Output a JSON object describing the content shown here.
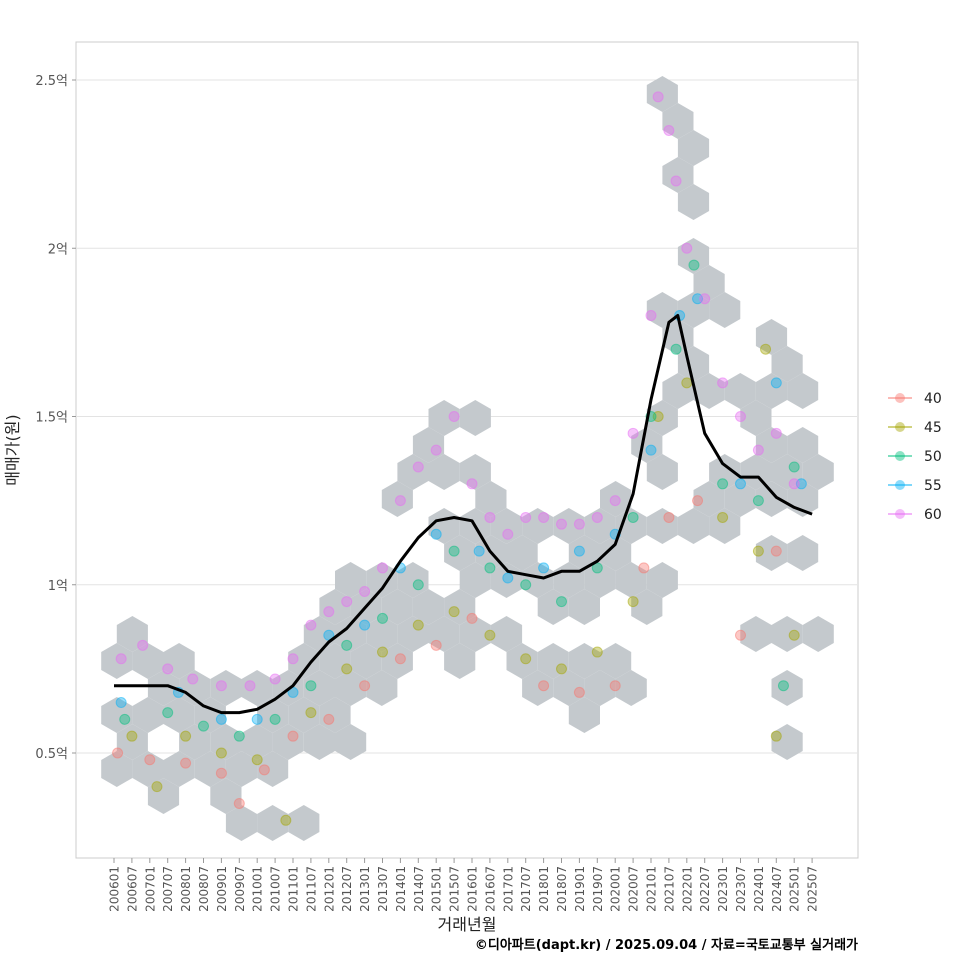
{
  "chart_data": {
    "type": "scatter",
    "title": "",
    "xlabel": "거래년월",
    "ylabel": "매매가(원)",
    "ylim": [
      0.2,
      2.6
    ],
    "xlim": [
      2005.0,
      2027.0
    ],
    "grid": true,
    "y_ticks": [
      {
        "v": 0.5,
        "label": "0.5억"
      },
      {
        "v": 1.0,
        "label": "1억"
      },
      {
        "v": 1.5,
        "label": "1.5억"
      },
      {
        "v": 2.0,
        "label": "2억"
      },
      {
        "v": 2.5,
        "label": "2.5억"
      }
    ],
    "x_ticks": [
      "200601",
      "200607",
      "200701",
      "200707",
      "200801",
      "200807",
      "200901",
      "200907",
      "201001",
      "201007",
      "201101",
      "201107",
      "201201",
      "201207",
      "201301",
      "201307",
      "201401",
      "201407",
      "201501",
      "201507",
      "201601",
      "201607",
      "201701",
      "201707",
      "201801",
      "201807",
      "201901",
      "201907",
      "202001",
      "202007",
      "202101",
      "202107",
      "202201",
      "202207",
      "202301",
      "202307",
      "202401",
      "202407",
      "202501",
      "202507"
    ],
    "legend": {
      "position": "right",
      "title": ""
    },
    "series": [
      {
        "name": "40",
        "color": "#F8766D",
        "points": [
          [
            2006.1,
            0.5
          ],
          [
            2007,
            0.48
          ],
          [
            2008,
            0.47
          ],
          [
            2009,
            0.44
          ],
          [
            2009.5,
            0.35
          ],
          [
            2010.2,
            0.45
          ],
          [
            2011,
            0.55
          ],
          [
            2012,
            0.6
          ],
          [
            2013,
            0.7
          ],
          [
            2014,
            0.78
          ],
          [
            2015,
            0.82
          ],
          [
            2016,
            0.9
          ],
          [
            2018,
            0.7
          ],
          [
            2019,
            0.68
          ],
          [
            2020,
            0.7
          ],
          [
            2020.8,
            1.05
          ],
          [
            2021.5,
            1.2
          ],
          [
            2022.3,
            1.25
          ],
          [
            2023.5,
            0.85
          ],
          [
            2024.5,
            1.1
          ]
        ]
      },
      {
        "name": "45",
        "color": "#A3A500",
        "points": [
          [
            2006.5,
            0.55
          ],
          [
            2007.2,
            0.4
          ],
          [
            2008,
            0.55
          ],
          [
            2009,
            0.5
          ],
          [
            2010,
            0.48
          ],
          [
            2010.8,
            0.3
          ],
          [
            2011.5,
            0.62
          ],
          [
            2012.5,
            0.75
          ],
          [
            2013.5,
            0.8
          ],
          [
            2014.5,
            0.88
          ],
          [
            2015.5,
            0.92
          ],
          [
            2016.5,
            0.85
          ],
          [
            2017.5,
            0.78
          ],
          [
            2018.5,
            0.75
          ],
          [
            2019.5,
            0.8
          ],
          [
            2020.5,
            0.95
          ],
          [
            2021.2,
            1.5
          ],
          [
            2022,
            1.6
          ],
          [
            2023,
            1.2
          ],
          [
            2024,
            1.1
          ],
          [
            2025,
            0.85
          ],
          [
            2024.5,
            0.55
          ],
          [
            2024.2,
            1.7
          ]
        ]
      },
      {
        "name": "50",
        "color": "#00BF7D",
        "points": [
          [
            2006.3,
            0.6
          ],
          [
            2007.5,
            0.62
          ],
          [
            2008.5,
            0.58
          ],
          [
            2009.5,
            0.55
          ],
          [
            2010.5,
            0.6
          ],
          [
            2011.5,
            0.7
          ],
          [
            2012.5,
            0.82
          ],
          [
            2013.5,
            0.9
          ],
          [
            2014.5,
            1.0
          ],
          [
            2015.5,
            1.1
          ],
          [
            2016.5,
            1.05
          ],
          [
            2017.5,
            1.0
          ],
          [
            2018.5,
            0.95
          ],
          [
            2019.5,
            1.05
          ],
          [
            2020.5,
            1.2
          ],
          [
            2021,
            1.5
          ],
          [
            2021.7,
            1.7
          ],
          [
            2022.2,
            1.95
          ],
          [
            2023,
            1.3
          ],
          [
            2024,
            1.25
          ],
          [
            2025,
            1.35
          ],
          [
            2024.7,
            0.7
          ]
        ]
      },
      {
        "name": "55",
        "color": "#00B0F6",
        "points": [
          [
            2006.2,
            0.65
          ],
          [
            2007.8,
            0.68
          ],
          [
            2009,
            0.6
          ],
          [
            2010,
            0.6
          ],
          [
            2011,
            0.68
          ],
          [
            2012,
            0.85
          ],
          [
            2013,
            0.88
          ],
          [
            2014,
            1.05
          ],
          [
            2015,
            1.15
          ],
          [
            2016.2,
            1.1
          ],
          [
            2017,
            1.02
          ],
          [
            2018,
            1.05
          ],
          [
            2019,
            1.1
          ],
          [
            2020,
            1.15
          ],
          [
            2021,
            1.4
          ],
          [
            2021.8,
            1.8
          ],
          [
            2022.3,
            1.85
          ],
          [
            2023.5,
            1.3
          ],
          [
            2024.5,
            1.6
          ],
          [
            2025.2,
            1.3
          ]
        ]
      },
      {
        "name": "60",
        "color": "#E76BF3",
        "points": [
          [
            2006.2,
            0.78
          ],
          [
            2006.8,
            0.82
          ],
          [
            2007.5,
            0.75
          ],
          [
            2008.2,
            0.72
          ],
          [
            2009,
            0.7
          ],
          [
            2009.8,
            0.7
          ],
          [
            2010.5,
            0.72
          ],
          [
            2011,
            0.78
          ],
          [
            2011.5,
            0.88
          ],
          [
            2012,
            0.92
          ],
          [
            2012.5,
            0.95
          ],
          [
            2013,
            0.98
          ],
          [
            2013.5,
            1.05
          ],
          [
            2014,
            1.25
          ],
          [
            2014.5,
            1.35
          ],
          [
            2015,
            1.4
          ],
          [
            2015.5,
            1.5
          ],
          [
            2016,
            1.3
          ],
          [
            2016.5,
            1.2
          ],
          [
            2017,
            1.15
          ],
          [
            2017.5,
            1.2
          ],
          [
            2018,
            1.2
          ],
          [
            2018.5,
            1.18
          ],
          [
            2019,
            1.18
          ],
          [
            2019.5,
            1.2
          ],
          [
            2020,
            1.25
          ],
          [
            2020.5,
            1.45
          ],
          [
            2021,
            1.8
          ],
          [
            2021.2,
            2.45
          ],
          [
            2021.5,
            2.35
          ],
          [
            2021.7,
            2.2
          ],
          [
            2022,
            2.0
          ],
          [
            2022.5,
            1.85
          ],
          [
            2023,
            1.6
          ],
          [
            2023.5,
            1.5
          ],
          [
            2024,
            1.4
          ],
          [
            2024.5,
            1.45
          ],
          [
            2025,
            1.3
          ]
        ]
      }
    ],
    "trend_line": {
      "name": "median",
      "color": "#000000",
      "points": [
        [
          2006.0,
          0.7
        ],
        [
          2007.0,
          0.7
        ],
        [
          2007.5,
          0.7
        ],
        [
          2008.0,
          0.68
        ],
        [
          2008.5,
          0.64
        ],
        [
          2009.0,
          0.62
        ],
        [
          2009.5,
          0.62
        ],
        [
          2010.0,
          0.63
        ],
        [
          2010.5,
          0.66
        ],
        [
          2011.0,
          0.7
        ],
        [
          2011.5,
          0.77
        ],
        [
          2012.0,
          0.83
        ],
        [
          2012.5,
          0.87
        ],
        [
          2013.0,
          0.93
        ],
        [
          2013.5,
          0.99
        ],
        [
          2014.0,
          1.07
        ],
        [
          2014.5,
          1.14
        ],
        [
          2015.0,
          1.19
        ],
        [
          2015.5,
          1.2
        ],
        [
          2016.0,
          1.19
        ],
        [
          2016.5,
          1.1
        ],
        [
          2017.0,
          1.04
        ],
        [
          2017.5,
          1.03
        ],
        [
          2018.0,
          1.02
        ],
        [
          2018.5,
          1.04
        ],
        [
          2019.0,
          1.04
        ],
        [
          2019.5,
          1.07
        ],
        [
          2020.0,
          1.12
        ],
        [
          2020.5,
          1.27
        ],
        [
          2021.0,
          1.55
        ],
        [
          2021.5,
          1.78
        ],
        [
          2021.75,
          1.8
        ],
        [
          2022.0,
          1.68
        ],
        [
          2022.5,
          1.45
        ],
        [
          2023.0,
          1.36
        ],
        [
          2023.5,
          1.32
        ],
        [
          2024.0,
          1.32
        ],
        [
          2024.5,
          1.26
        ],
        [
          2025.0,
          1.23
        ],
        [
          2025.5,
          1.21
        ]
      ]
    }
  },
  "footer": "©디아파트(dapt.kr) / 2025.09.04 / 자료=국토교통부 실거래가"
}
